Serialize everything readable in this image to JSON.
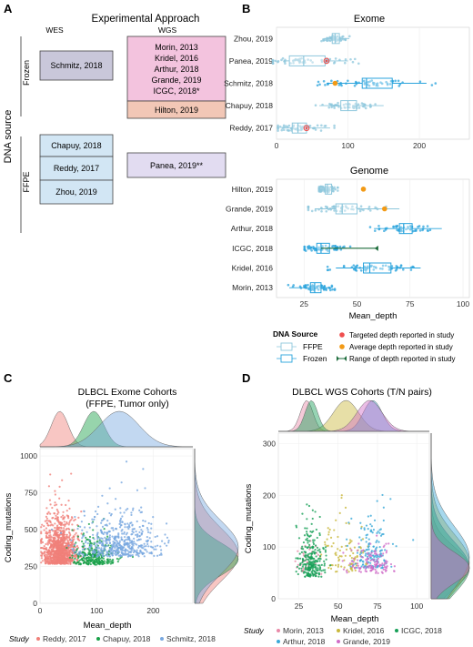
{
  "panels": {
    "a": "A",
    "b": "B",
    "c": "C",
    "d": "D"
  },
  "panel_a": {
    "title": "Experimental Approach",
    "col_wes": "WES",
    "col_wgs": "WGS",
    "y_title": "DNA source",
    "row_frozen": "Frozen",
    "row_ffpe": "FFPE",
    "boxes": [
      {
        "lines": [
          "Schmitz, 2018"
        ],
        "color": "#c9c7da"
      },
      {
        "lines": [
          "Morin, 2013",
          "Kridel, 2016",
          "Arthur, 2018",
          "Grande, 2019",
          "ICGC, 2018*"
        ],
        "color": "#f3c3de"
      },
      {
        "lines": [
          "Hilton, 2019"
        ],
        "color": "#f2c7b6"
      },
      {
        "lines": [
          "Chapuy, 2018"
        ],
        "color": "#d2e6f4"
      },
      {
        "lines": [
          "Reddy, 2017"
        ],
        "color": "#d2e6f4"
      },
      {
        "lines": [
          "Zhou, 2019"
        ],
        "color": "#d2e6f4"
      },
      {
        "lines": [
          "Panea, 2019**"
        ],
        "color": "#e2dcf1"
      }
    ]
  },
  "panel_b": {
    "exome_title": "Exome",
    "genome_title": "Genome",
    "xlabel": "Mean_depth",
    "legend": {
      "title": "DNA Source",
      "ffpe": "FFPE",
      "frozen": "Frozen",
      "targeted": "Targeted depth reported in study",
      "average": "Average depth reported in study",
      "range": "Range of depth reported in study"
    }
  },
  "panel_c": {
    "title_line1": "DLBCL Exome Cohorts",
    "title_line2": "(FFPE, Tumor only)",
    "xlabel": "Mean_depth",
    "ylabel": "Coding_mutations",
    "legend_title": "Study"
  },
  "panel_d": {
    "title": "DLBCL WGS Cohorts (T/N pairs)",
    "xlabel": "Mean_depth",
    "ylabel": "Coding_mutations",
    "legend_title": "Study"
  },
  "colors": {
    "ffpe": "#8ec7dc",
    "frozen": "#29a3dc",
    "targeted": "#ef4f4f",
    "average": "#f29a16",
    "range": "#1b6b3a"
  },
  "chart_data": [
    {
      "type": "boxplot",
      "title": "Exome",
      "xlabel": "Mean_depth",
      "xlim": [
        0,
        270
      ],
      "xticks": [
        0,
        100,
        200
      ],
      "series": [
        {
          "name": "Zhou, 2019",
          "q1": 78,
          "median": 82,
          "q3": 88,
          "whisker_low": 66,
          "whisker_high": 102,
          "source": "FFPE",
          "reported_type": "",
          "reported": null
        },
        {
          "name": "Panea, 2019",
          "q1": 18,
          "median": 38,
          "q3": 68,
          "whisker_low": 10,
          "whisker_high": 100,
          "source": "FFPE",
          "reported_type": "targeted",
          "reported": 70
        },
        {
          "name": "Schmitz, 2018",
          "q1": 120,
          "median": 126,
          "q3": 162,
          "whisker_low": 70,
          "whisker_high": 210,
          "source": "Frozen",
          "reported_type": "average",
          "reported": 82
        },
        {
          "name": "Chapuy, 2018",
          "q1": 90,
          "median": 100,
          "q3": 112,
          "whisker_low": 60,
          "whisker_high": 150,
          "source": "FFPE",
          "reported_type": "",
          "reported": null
        },
        {
          "name": "Reddy, 2017",
          "q1": 22,
          "median": 30,
          "q3": 42,
          "whisker_low": 8,
          "whisker_high": 75,
          "source": "FFPE",
          "reported_type": "targeted",
          "reported": 42
        }
      ]
    },
    {
      "type": "boxplot",
      "title": "Genome",
      "xlabel": "Mean_depth",
      "xlim": [
        12,
        103
      ],
      "xticks": [
        25,
        50,
        75,
        100
      ],
      "series": [
        {
          "name": "Hilton, 2019",
          "q1": 35,
          "median": 36,
          "q3": 38,
          "whisker_low": 33,
          "whisker_high": 40,
          "source": "FFPE",
          "reported_type": "average",
          "reported": 53
        },
        {
          "name": "Grande, 2019",
          "q1": 40,
          "median": 43,
          "q3": 50,
          "whisker_low": 30,
          "whisker_high": 70,
          "source": "FFPE",
          "reported_type": "average",
          "reported": 63
        },
        {
          "name": "Arthur, 2018",
          "q1": 70,
          "median": 72,
          "q3": 76,
          "whisker_low": 58,
          "whisker_high": 90,
          "source": "Frozen",
          "reported_type": "",
          "reported": null
        },
        {
          "name": "ICGC, 2018",
          "q1": 31,
          "median": 33,
          "q3": 37,
          "whisker_low": 27,
          "whisker_high": 45,
          "source": "Frozen",
          "reported_type": "range",
          "reported": null,
          "range": [
            33,
            60
          ]
        },
        {
          "name": "Kridel, 2016",
          "q1": 53,
          "median": 56,
          "q3": 66,
          "whisker_low": 40,
          "whisker_high": 80,
          "source": "Frozen",
          "reported_type": "",
          "reported": null
        },
        {
          "name": "Morin, 2013",
          "q1": 28,
          "median": 30,
          "q3": 33,
          "whisker_low": 18,
          "whisker_high": 38,
          "source": "Frozen",
          "reported_type": "",
          "reported": null
        }
      ]
    },
    {
      "type": "scatter",
      "title": "DLBCL Exome Cohorts (FFPE, Tumor only)",
      "xlabel": "Mean_depth",
      "ylabel": "Coding_mutations",
      "xlim": [
        0,
        270
      ],
      "ylim": [
        0,
        1050
      ],
      "xticks": [
        0,
        100,
        200
      ],
      "yticks": [
        0,
        250,
        500,
        750,
        1000
      ],
      "series": [
        {
          "name": "Reddy, 2017",
          "color": "#f08079",
          "n": 1000,
          "x_mean": 35,
          "x_sd": 15,
          "y_mean": 330,
          "y_sd": 180
        },
        {
          "name": "Chapuy, 2018",
          "color": "#18a048",
          "n": 300,
          "x_mean": 95,
          "x_sd": 18,
          "y_mean": 300,
          "y_sd": 110
        },
        {
          "name": "Schmitz, 2018",
          "color": "#78a8e0",
          "n": 520,
          "x_mean": 140,
          "x_sd": 35,
          "y_mean": 380,
          "y_sd": 180
        }
      ]
    },
    {
      "type": "scatter",
      "title": "DLBCL WGS Cohorts (T/N pairs)",
      "xlabel": "Mean_depth",
      "ylabel": "Coding_mutations",
      "xlim": [
        12,
        108
      ],
      "ylim": [
        0,
        320
      ],
      "xticks": [
        25,
        50,
        75,
        100
      ],
      "yticks": [
        0,
        100,
        200,
        300
      ],
      "series": [
        {
          "name": "Morin, 2013",
          "color": "#e98aa8",
          "n": 40,
          "x_mean": 30,
          "x_sd": 4,
          "y_mean": 60,
          "y_sd": 40
        },
        {
          "name": "Kridel, 2016",
          "color": "#c9b83c",
          "n": 100,
          "x_mean": 55,
          "x_sd": 8,
          "y_mean": 70,
          "y_sd": 55
        },
        {
          "name": "ICGC, 2018",
          "color": "#18a058",
          "n": 250,
          "x_mean": 33,
          "x_sd": 4,
          "y_mean": 60,
          "y_sd": 50
        },
        {
          "name": "Arthur, 2018",
          "color": "#3aa9d8",
          "n": 150,
          "x_mean": 72,
          "x_sd": 6,
          "y_mean": 80,
          "y_sd": 60
        },
        {
          "name": "Grande, 2019",
          "color": "#d06cc8",
          "n": 120,
          "x_mean": 70,
          "x_sd": 8,
          "y_mean": 60,
          "y_sd": 30
        }
      ]
    }
  ]
}
